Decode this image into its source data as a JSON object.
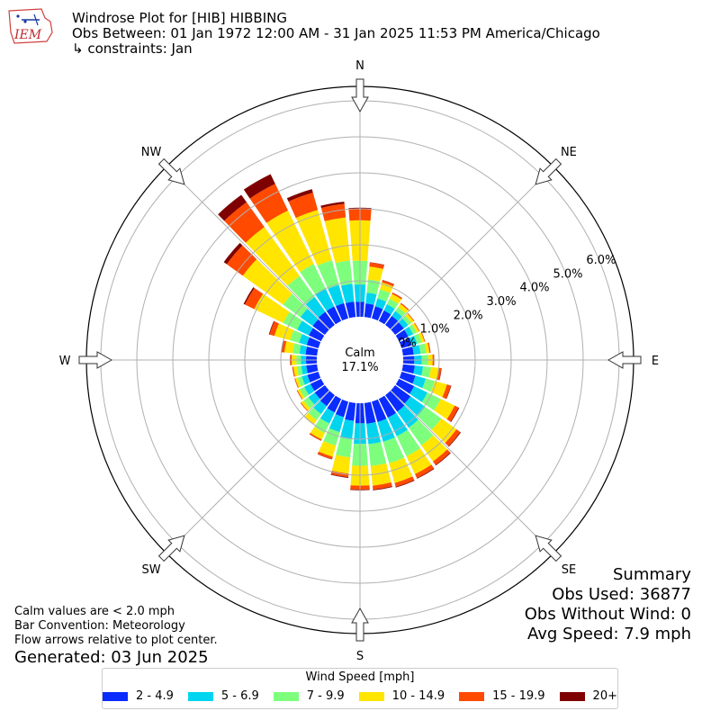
{
  "header": {
    "logo_text": "IEM",
    "title": "Windrose Plot for [HIB] HIBBING",
    "subtitle": "Obs Between: 01 Jan 1972 12:00 AM - 31 Jan 2025 11:53 PM America/Chicago",
    "constraints": "↳ constraints: Jan"
  },
  "summary": {
    "heading": "Summary",
    "obs_used": "Obs Used: 36877",
    "obs_without_wind": "Obs Without Wind: 0",
    "avg_speed": "Avg Speed: 7.9 mph"
  },
  "notes": {
    "calm_note": "Calm values are < 2.0 mph",
    "bar_convention": "Bar Convention: Meteorology",
    "flow_note": "Flow arrows relative to plot center.",
    "generated": "Generated: 03 Jun 2025"
  },
  "legend": {
    "title": "Wind Speed [mph]",
    "items": [
      {
        "label": "2 - 4.9",
        "color": "#0b2cff"
      },
      {
        "label": "5 - 6.9",
        "color": "#00d4ef"
      },
      {
        "label": "7 - 9.9",
        "color": "#7dff7d"
      },
      {
        "label": "10 - 14.9",
        "color": "#ffe500"
      },
      {
        "label": "15 - 19.9",
        "color": "#ff4a00"
      },
      {
        "label": "20+",
        "color": "#7f0000"
      }
    ]
  },
  "chart_data": {
    "type": "windrose",
    "unit": "%",
    "calm_label": "Calm",
    "calm_value": "17.1%",
    "radial_ticks": [
      "0.0%",
      "1.0%",
      "2.0%",
      "3.0%",
      "4.0%",
      "5.0%",
      "6.0%"
    ],
    "radial_tick_values": [
      0,
      1,
      2,
      3,
      4,
      5,
      6
    ],
    "rmax": 6.4,
    "compass_labels": [
      {
        "label": "N",
        "angle": 0
      },
      {
        "label": "NE",
        "angle": 45
      },
      {
        "label": "E",
        "angle": 90
      },
      {
        "label": "SE",
        "angle": 135
      },
      {
        "label": "S",
        "angle": 180
      },
      {
        "label": "SW",
        "angle": 225
      },
      {
        "label": "W",
        "angle": 270
      },
      {
        "label": "NW",
        "angle": 315
      }
    ],
    "directions": [
      0,
      10,
      20,
      30,
      40,
      50,
      60,
      70,
      80,
      90,
      100,
      110,
      120,
      130,
      140,
      150,
      160,
      170,
      180,
      190,
      200,
      210,
      220,
      230,
      240,
      250,
      260,
      270,
      280,
      290,
      300,
      310,
      320,
      330,
      340,
      350
    ],
    "series": [
      {
        "name": "2 - 4.9",
        "color": "#0b2cff",
        "values": [
          0.42,
          0.38,
          0.35,
          0.33,
          0.31,
          0.3,
          0.29,
          0.29,
          0.3,
          0.31,
          0.33,
          0.4,
          0.47,
          0.53,
          0.57,
          0.58,
          0.59,
          0.58,
          0.56,
          0.5,
          0.45,
          0.42,
          0.38,
          0.35,
          0.33,
          0.32,
          0.3,
          0.3,
          0.32,
          0.34,
          0.38,
          0.42,
          0.45,
          0.45,
          0.44,
          0.43
        ]
      },
      {
        "name": "5 - 6.9",
        "color": "#00d4ef",
        "values": [
          0.48,
          0.3,
          0.23,
          0.19,
          0.17,
          0.15,
          0.15,
          0.16,
          0.19,
          0.21,
          0.23,
          0.3,
          0.41,
          0.5,
          0.55,
          0.57,
          0.57,
          0.57,
          0.57,
          0.52,
          0.43,
          0.34,
          0.27,
          0.22,
          0.19,
          0.16,
          0.14,
          0.14,
          0.17,
          0.22,
          0.36,
          0.42,
          0.51,
          0.55,
          0.53,
          0.5
        ]
      },
      {
        "name": "7 - 9.9",
        "color": "#7dff7d",
        "values": [
          0.66,
          0.37,
          0.26,
          0.17,
          0.13,
          0.11,
          0.11,
          0.13,
          0.16,
          0.18,
          0.22,
          0.26,
          0.41,
          0.55,
          0.6,
          0.62,
          0.62,
          0.61,
          0.61,
          0.5,
          0.39,
          0.29,
          0.21,
          0.16,
          0.14,
          0.12,
          0.12,
          0.13,
          0.19,
          0.26,
          0.43,
          0.59,
          0.72,
          0.76,
          0.71,
          0.65
        ]
      },
      {
        "name": "10 - 14.9",
        "color": "#ffe500",
        "values": [
          1.12,
          0.36,
          0.2,
          0.15,
          0.11,
          0.08,
          0.07,
          0.08,
          0.09,
          0.12,
          0.22,
          0.35,
          0.43,
          0.52,
          0.55,
          0.55,
          0.57,
          0.55,
          0.55,
          0.45,
          0.32,
          0.2,
          0.13,
          0.09,
          0.07,
          0.07,
          0.1,
          0.13,
          0.23,
          0.45,
          0.89,
          1.38,
          1.67,
          1.65,
          1.45,
          1.2
        ]
      },
      {
        "name": "15 - 19.9",
        "color": "#ff4a00",
        "values": [
          0.32,
          0.11,
          0.06,
          0.04,
          0.03,
          0.02,
          0.02,
          0.02,
          0.03,
          0.04,
          0.07,
          0.11,
          0.12,
          0.13,
          0.12,
          0.12,
          0.11,
          0.11,
          0.11,
          0.1,
          0.07,
          0.04,
          0.02,
          0.02,
          0.02,
          0.02,
          0.03,
          0.04,
          0.07,
          0.14,
          0.29,
          0.55,
          0.85,
          0.82,
          0.5,
          0.38
        ]
      },
      {
        "name": "20+",
        "color": "#7f0000",
        "values": [
          0.03,
          0.01,
          0.01,
          0.005,
          0.003,
          0.002,
          0.002,
          0.002,
          0.003,
          0.005,
          0.01,
          0.015,
          0.02,
          0.02,
          0.02,
          0.02,
          0.02,
          0.02,
          0.02,
          0.02,
          0.01,
          0.005,
          0.003,
          0.002,
          0.002,
          0.002,
          0.003,
          0.005,
          0.01,
          0.02,
          0.04,
          0.1,
          0.25,
          0.3,
          0.1,
          0.06
        ]
      }
    ]
  }
}
